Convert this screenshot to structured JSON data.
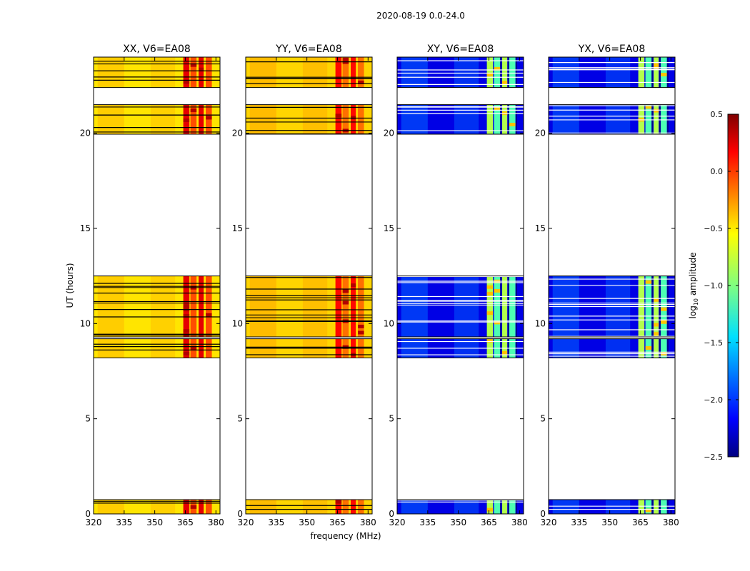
{
  "chart_data": {
    "type": "heatmap",
    "suptitle": "2020-08-19 0.0-24.0",
    "xlabel": "frequency (MHz)",
    "ylabel": "UT (hours)",
    "xlim": [
      320,
      382
    ],
    "ylim": [
      0,
      24
    ],
    "xticks": [
      320,
      335,
      350,
      365,
      380
    ],
    "yticks": [
      0,
      5,
      10,
      15,
      20
    ],
    "ytick_labels": [
      "0",
      "5",
      "10",
      "15",
      "20"
    ],
    "xtick_labels": [
      "320",
      "335",
      "350",
      "365",
      "380"
    ],
    "colorbar": {
      "label_prefix": "log",
      "label_sub": "10",
      "label_suffix": " amplitude",
      "range": [
        -2.5,
        0.5
      ],
      "ticks": [
        0.5,
        0.0,
        -0.5,
        -1.0,
        -1.5,
        -2.0,
        -2.5
      ],
      "tick_labels": [
        "0.5",
        "0.0",
        "−0.5",
        "−1.0",
        "−1.5",
        "−2.0",
        "−2.5"
      ],
      "colormap": "jet"
    },
    "data_blocks_ut": [
      [
        0.0,
        0.75
      ],
      [
        8.2,
        9.2
      ],
      [
        9.3,
        12.5
      ],
      [
        19.95,
        21.5
      ],
      [
        22.4,
        24.0
      ]
    ],
    "series": [
      {
        "name": "XX, V6=EA08",
        "background_log_amp": -0.55,
        "rfi_log_amp": 0.05
      },
      {
        "name": "YY, V6=EA08",
        "background_log_amp": -0.5,
        "rfi_log_amp": -0.05
      },
      {
        "name": "XY, V6=EA08",
        "background_log_amp": -2.2,
        "rfi_log_amp": -1.0
      },
      {
        "name": "YX, V6=EA08",
        "background_log_amp": -2.2,
        "rfi_log_amp": -1.0
      }
    ],
    "rfi_band_mhz": [
      363,
      380
    ]
  }
}
